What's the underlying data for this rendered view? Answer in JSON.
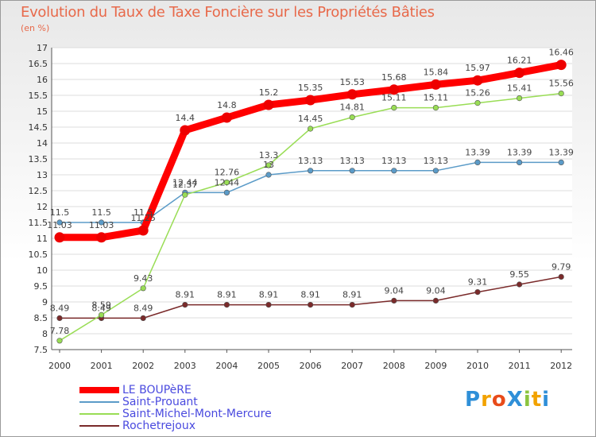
{
  "title": "Evolution du Taux de Taxe Foncière sur les Propriétés Bâties",
  "unit_label": "(en %)",
  "logo": {
    "text": "ProXiti",
    "letters": [
      "P",
      "r",
      "o",
      "X",
      "i",
      "t",
      "i"
    ],
    "colors": [
      "#2f8fd8",
      "#f2a200",
      "#e84b1a",
      "#2f8fd8",
      "#8bc43f",
      "#f2a200",
      "#2f8fd8"
    ]
  },
  "chart_data": {
    "type": "line",
    "title": "Evolution du Taux de Taxe Foncière sur les Propriétés Bâties",
    "ylabel": "(en %)",
    "xlabel": "",
    "categories": [
      "2000",
      "2001",
      "2002",
      "2003",
      "2004",
      "2005",
      "2006",
      "2007",
      "2008",
      "2009",
      "2010",
      "2011",
      "2012"
    ],
    "ylim": [
      7.5,
      17
    ],
    "yticks": [
      "7.5",
      "8",
      "8.5",
      "9",
      "9.5",
      "10",
      "10.5",
      "11",
      "11.5",
      "12",
      "12.5",
      "13",
      "13.5",
      "14",
      "14.5",
      "15",
      "15.5",
      "16",
      "16.5",
      "17"
    ],
    "grid": "horizontal",
    "legend_position": "bottom-left",
    "series": [
      {
        "name": "LE BOUPèRE",
        "color": "#ff0000",
        "values": [
          11.03,
          11.03,
          11.25,
          14.4,
          14.8,
          15.2,
          15.35,
          15.53,
          15.68,
          15.84,
          15.97,
          16.21,
          16.46
        ],
        "labels": [
          "11.03",
          "11.03",
          "11.25",
          "14.4",
          "14.8",
          "15.2",
          "15.35",
          "15.53",
          "15.68",
          "15.84",
          "15.97",
          "16.21",
          "16.46"
        ]
      },
      {
        "name": "Saint-Prouant",
        "color": "#5b9bc8",
        "values": [
          11.5,
          11.5,
          11.5,
          12.44,
          12.44,
          13,
          13.13,
          13.13,
          13.13,
          13.13,
          13.39,
          13.39,
          13.39
        ],
        "labels": [
          "11.5",
          "11.5",
          "11.5",
          "12.44",
          "12.44",
          "13",
          "13.13",
          "13.13",
          "13.13",
          "13.13",
          "13.39",
          "13.39",
          "13.39"
        ]
      },
      {
        "name": "Saint-Michel-Mont-Mercure",
        "color": "#99dd55",
        "values": [
          7.78,
          8.59,
          9.43,
          12.37,
          12.76,
          13.3,
          14.45,
          14.81,
          15.11,
          15.11,
          15.26,
          15.41,
          15.56
        ],
        "labels": [
          "7.78",
          "8.59",
          "9.43",
          "12.37",
          "12.76",
          "13.3",
          "14.45",
          "14.81",
          "15.11",
          "15.11",
          "15.26",
          "15.41",
          "15.56"
        ]
      },
      {
        "name": "Rochetrejoux",
        "color": "#7a2a2a",
        "values": [
          8.49,
          8.49,
          8.49,
          8.91,
          8.91,
          8.91,
          8.91,
          8.91,
          9.04,
          9.04,
          9.31,
          9.55,
          9.79
        ],
        "labels": [
          "8.49",
          "8.49",
          "8.49",
          "8.91",
          "8.91",
          "8.91",
          "8.91",
          "8.91",
          "9.04",
          "9.04",
          "9.31",
          "9.55",
          "9.79"
        ]
      }
    ]
  }
}
